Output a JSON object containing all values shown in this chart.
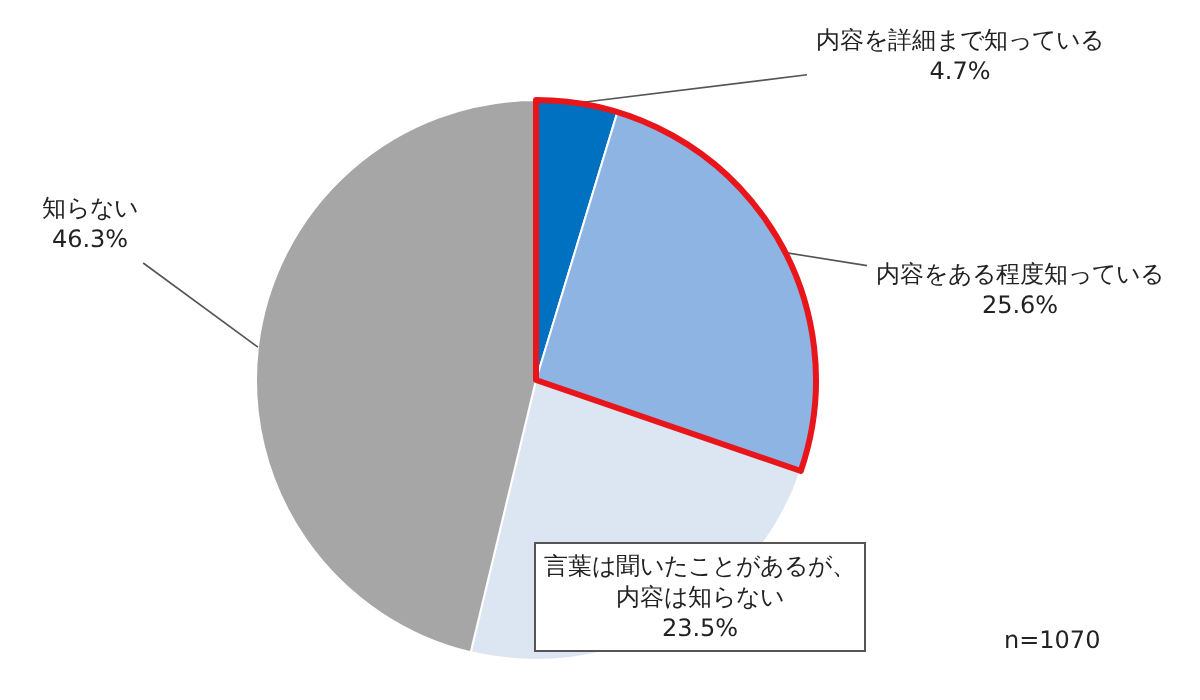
{
  "chart_data": {
    "type": "pie",
    "categories": [
      "内容を詳細まで知っている",
      "内容をある程度知っている",
      "言葉は聞いたことがあるが、内容は知らない",
      "知らない"
    ],
    "values": [
      4.7,
      25.6,
      23.5,
      46.3
    ],
    "colors": [
      "#0070c0",
      "#8eb4e3",
      "#dce6f2",
      "#a6a6a6"
    ],
    "value_labels": [
      "4.7%",
      "25.6%",
      "23.5%",
      "46.3%"
    ],
    "annotations": [
      "n=1070"
    ],
    "legend": false
  }
}
